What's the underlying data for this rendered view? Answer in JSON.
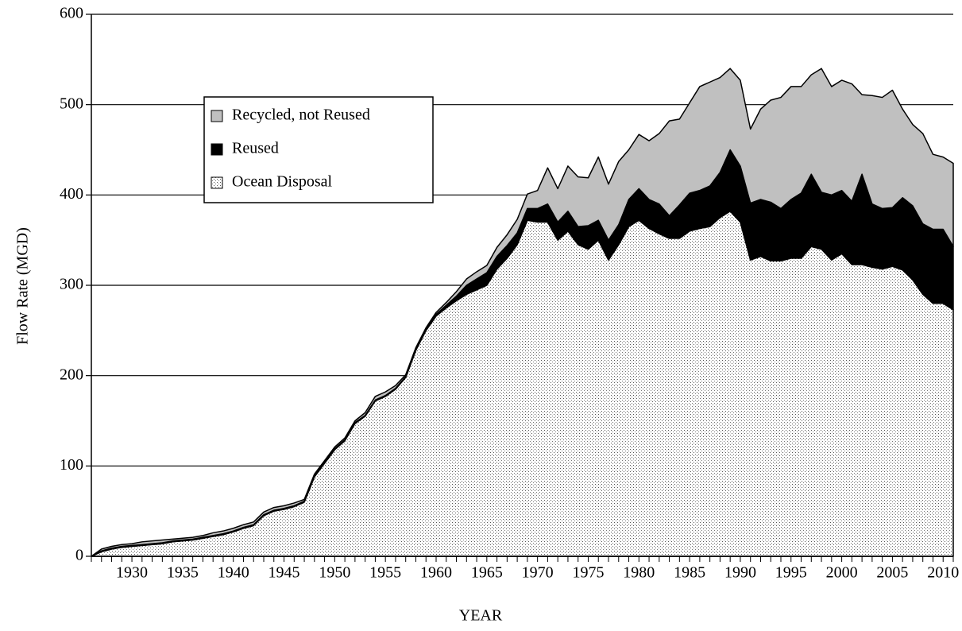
{
  "chart_data": {
    "type": "stacked_area",
    "xlabel": "YEAR",
    "ylabel": "Flow Rate (MGD)",
    "x": [
      1926,
      1927,
      1928,
      1929,
      1930,
      1931,
      1932,
      1933,
      1934,
      1935,
      1936,
      1937,
      1938,
      1939,
      1940,
      1941,
      1942,
      1943,
      1944,
      1945,
      1946,
      1947,
      1948,
      1949,
      1950,
      1951,
      1952,
      1953,
      1954,
      1955,
      1956,
      1957,
      1958,
      1959,
      1960,
      1961,
      1962,
      1963,
      1964,
      1965,
      1966,
      1967,
      1968,
      1969,
      1970,
      1971,
      1972,
      1973,
      1974,
      1975,
      1976,
      1977,
      1978,
      1979,
      1980,
      1981,
      1982,
      1983,
      1984,
      1985,
      1986,
      1987,
      1988,
      1989,
      1990,
      1991,
      1992,
      1993,
      1994,
      1995,
      1996,
      1997,
      1998,
      1999,
      2000,
      2001,
      2002,
      2003,
      2004,
      2005,
      2006,
      2007,
      2008,
      2009,
      2010,
      2011
    ],
    "series": [
      {
        "name": "Ocean Disposal",
        "color": "#ffffff",
        "hatch": "dots",
        "values": [
          0,
          5,
          8,
          10,
          11,
          12,
          13,
          14,
          16,
          17,
          18,
          20,
          22,
          24,
          27,
          31,
          34,
          45,
          50,
          52,
          55,
          60,
          88,
          103,
          118,
          128,
          147,
          155,
          172,
          177,
          185,
          198,
          228,
          250,
          266,
          275,
          283,
          290,
          295,
          300,
          318,
          330,
          345,
          372,
          370,
          370,
          350,
          360,
          345,
          340,
          350,
          328,
          345,
          365,
          372,
          363,
          357,
          352,
          352,
          360,
          363,
          365,
          375,
          382,
          370,
          328,
          332,
          327,
          327,
          330,
          330,
          343,
          340,
          328,
          335,
          323,
          323,
          320,
          318,
          321,
          317,
          306,
          290,
          280,
          280,
          273
        ]
      },
      {
        "name": "Reused",
        "color": "#000000",
        "values": [
          0,
          1,
          1,
          1,
          1,
          1,
          1,
          1,
          1,
          1,
          1,
          1,
          1,
          1,
          1,
          1,
          1,
          1,
          1,
          1,
          1,
          1,
          1,
          1,
          1,
          1,
          1,
          1,
          1,
          1,
          1,
          1,
          1,
          1,
          2,
          3,
          5,
          10,
          12,
          14,
          14,
          14,
          13,
          13,
          15,
          20,
          20,
          22,
          20,
          26,
          22,
          22,
          22,
          30,
          35,
          32,
          33,
          25,
          37,
          42,
          42,
          45,
          50,
          68,
          62,
          63,
          63,
          65,
          58,
          65,
          72,
          80,
          63,
          72,
          70,
          70,
          100,
          70,
          67,
          65,
          80,
          82,
          78,
          82,
          82,
          70
        ]
      },
      {
        "name": "Recycled, not Reused",
        "color": "#c0c0c0",
        "values": [
          0,
          2,
          2,
          2,
          2,
          3,
          3,
          3,
          2,
          2,
          2,
          2,
          3,
          3,
          3,
          3,
          3,
          3,
          3,
          3,
          3,
          2,
          2,
          2,
          2,
          2,
          2,
          3,
          4,
          4,
          3,
          2,
          2,
          2,
          2,
          3,
          5,
          7,
          8,
          8,
          10,
          12,
          15,
          16,
          20,
          40,
          37,
          50,
          55,
          53,
          70,
          62,
          70,
          55,
          60,
          65,
          78,
          105,
          95,
          100,
          115,
          115,
          105,
          90,
          95,
          82,
          100,
          113,
          123,
          125,
          118,
          110,
          137,
          120,
          122,
          130,
          88,
          120,
          123,
          130,
          98,
          90,
          100,
          83,
          80,
          92
        ]
      }
    ],
    "xlim": [
      1926,
      2011
    ],
    "xticks": [
      1930,
      1935,
      1940,
      1945,
      1950,
      1955,
      1960,
      1965,
      1970,
      1975,
      1980,
      1985,
      1990,
      1995,
      2000,
      2005,
      2010
    ],
    "ylim": [
      0,
      600
    ],
    "yticks": [
      0,
      100,
      200,
      300,
      400,
      500,
      600
    ],
    "grid": true,
    "legend": "upper left"
  }
}
